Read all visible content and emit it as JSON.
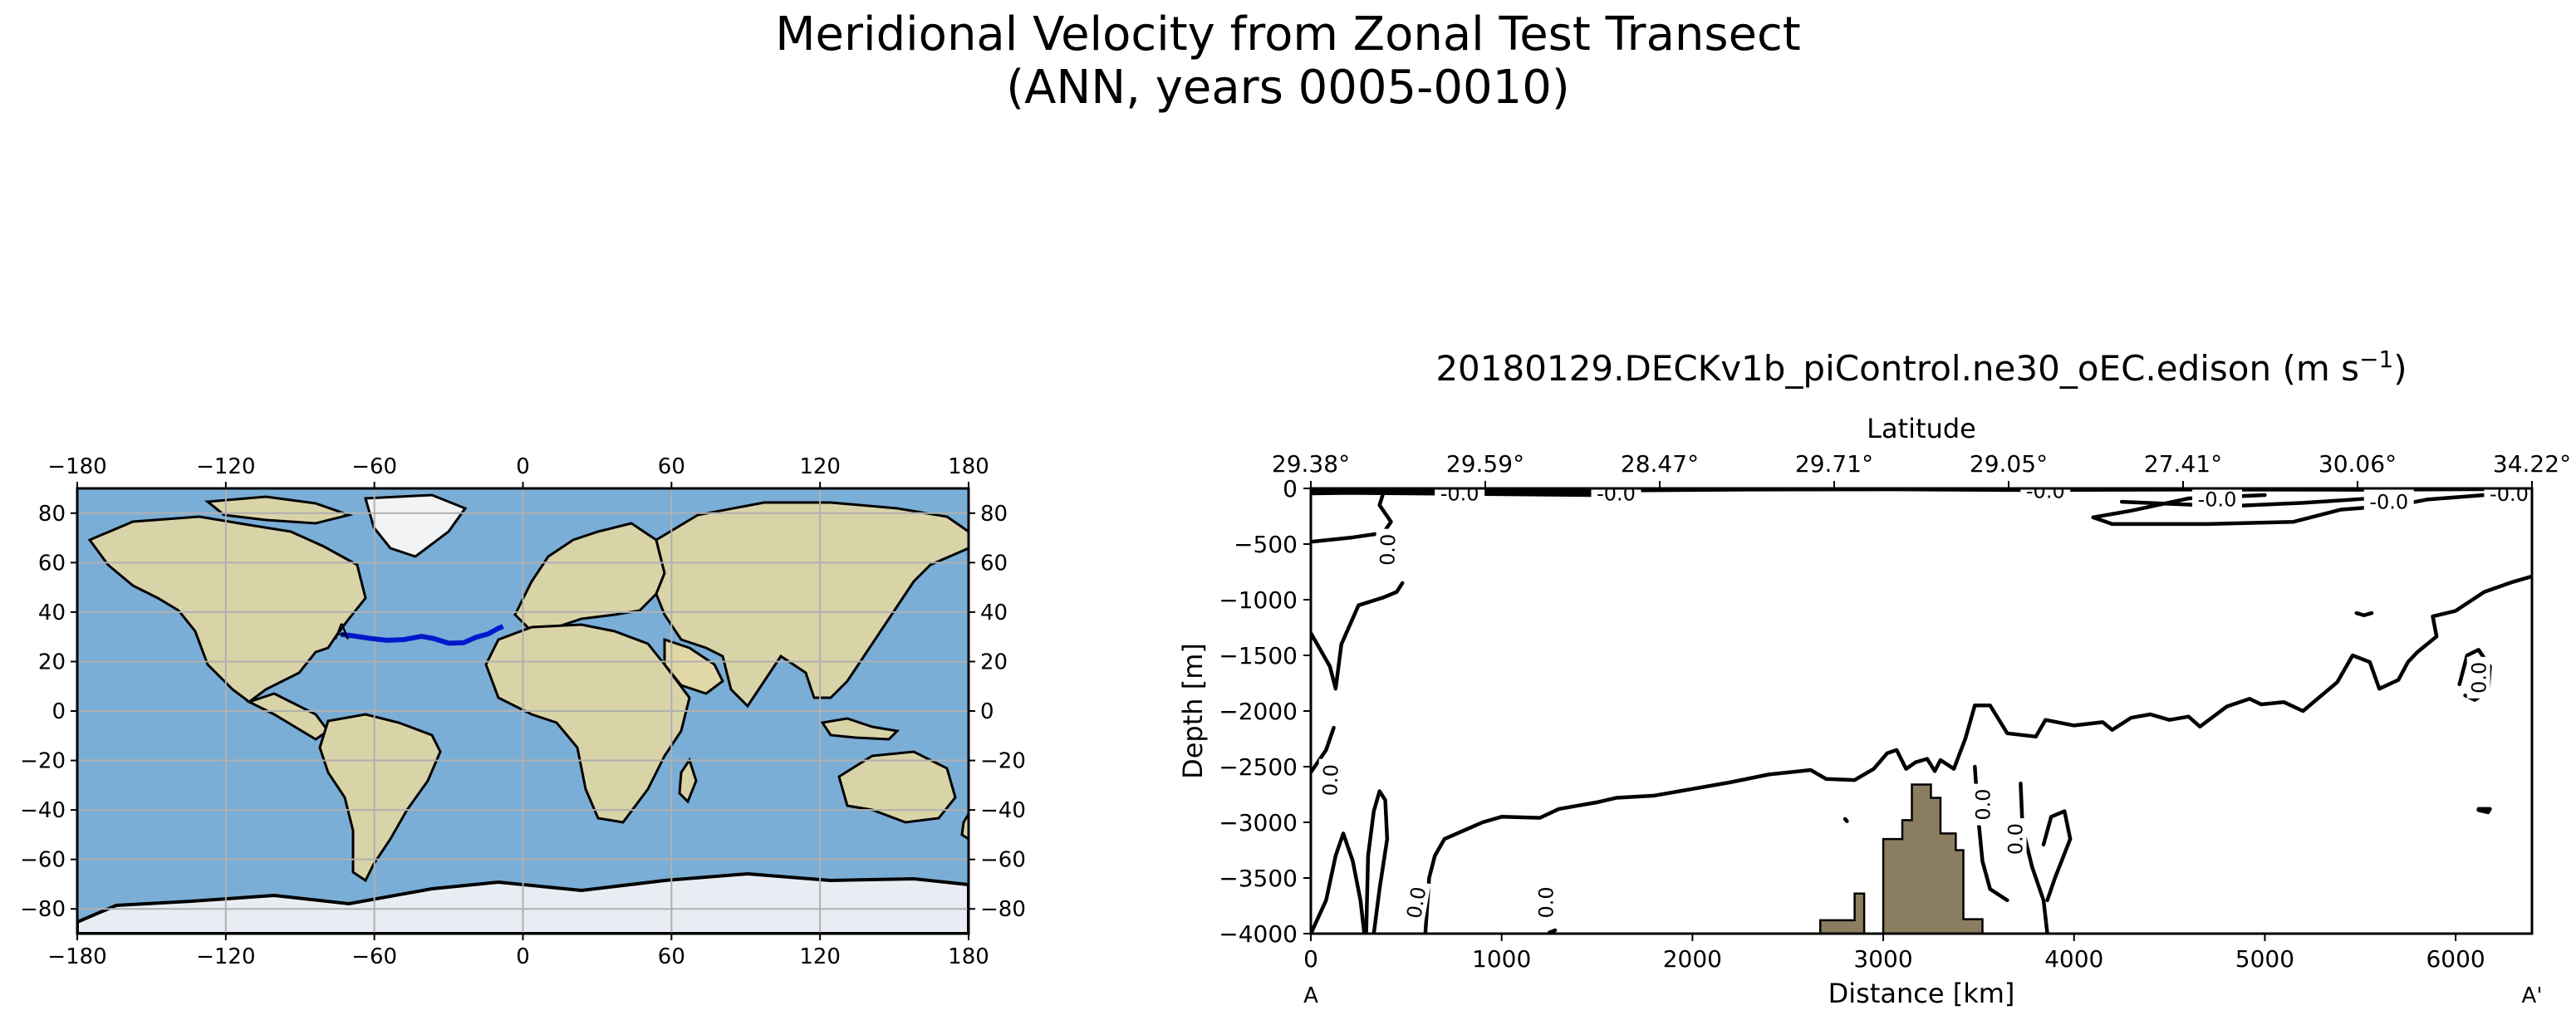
{
  "figure": {
    "title_line1": "Meridional Velocity from Zonal Test Transect",
    "title_line2": "(ANN, years 0005-0010)"
  },
  "map": {
    "lon_ticks": [
      -180,
      -120,
      -60,
      0,
      60,
      120,
      180
    ],
    "lat_ticks": [
      -80,
      -60,
      -40,
      -20,
      0,
      20,
      40,
      60,
      80
    ],
    "lon_range": [
      -180,
      180
    ],
    "lat_range": [
      -90,
      90
    ],
    "transect_label": "A",
    "transect_color": "#0018cc",
    "ocean_color": "#7aaed6",
    "land_color": "#d9d3a8",
    "transect_lonlat": [
      [
        -73.5,
        31.0
      ],
      [
        -68,
        30.3
      ],
      [
        -62,
        29.4
      ],
      [
        -55,
        28.6
      ],
      [
        -48,
        28.9
      ],
      [
        -41,
        30.2
      ],
      [
        -36,
        29.3
      ],
      [
        -30,
        27.4
      ],
      [
        -24,
        27.6
      ],
      [
        -19,
        29.8
      ],
      [
        -14,
        31.2
      ],
      [
        -10,
        33.4
      ],
      [
        -8,
        34.2
      ]
    ]
  },
  "chart_data": {
    "type": "contour",
    "title_main": "20180129.DECKv1b_piControl.ne30_oEC.edison (m s",
    "title_sup": "−1",
    "title_close": ")",
    "xlabel": "Distance [km]",
    "ylabel": "Depth [m]",
    "top_xlabel": "Latitude",
    "top_ticks": [
      "29.38°",
      "29.59°",
      "28.47°",
      "29.71°",
      "29.05°",
      "27.41°",
      "30.06°",
      "34.22°"
    ],
    "x_ticks": [
      0,
      1000,
      2000,
      3000,
      4000,
      5000,
      6000
    ],
    "y_ticks": [
      0,
      -500,
      -1000,
      -1500,
      -2000,
      -2500,
      -3000,
      -3500,
      -4000
    ],
    "xlim": [
      0,
      6400
    ],
    "ylim": [
      -4000,
      0
    ],
    "endpoint_left": "A",
    "endpoint_right": "A'",
    "contour_label": "0.0",
    "contour_label_neg": "-0.0",
    "bathymetry_color": "#8b7d60",
    "bathymetry": [
      [
        2670,
        -4000
      ],
      [
        2670,
        -3880
      ],
      [
        2850,
        -3880
      ],
      [
        2850,
        -3640
      ],
      [
        2900,
        -3640
      ],
      [
        2900,
        -4000
      ],
      [
        3000,
        -4000
      ],
      [
        3000,
        -3150
      ],
      [
        3100,
        -3150
      ],
      [
        3100,
        -2980
      ],
      [
        3150,
        -2980
      ],
      [
        3150,
        -2660
      ],
      [
        3250,
        -2660
      ],
      [
        3250,
        -2780
      ],
      [
        3300,
        -2780
      ],
      [
        3300,
        -3100
      ],
      [
        3380,
        -3100
      ],
      [
        3380,
        -3250
      ],
      [
        3420,
        -3250
      ],
      [
        3420,
        -3870
      ],
      [
        3520,
        -3870
      ],
      [
        3520,
        -4000
      ]
    ],
    "contours": [
      [
        [
          0,
          -5
        ],
        [
          600,
          -12
        ],
        [
          1500,
          -20
        ],
        [
          2300,
          -10
        ],
        [
          3000,
          -8
        ],
        [
          3800,
          -15
        ],
        [
          4600,
          -10
        ],
        [
          5500,
          -12
        ],
        [
          6400,
          -5
        ]
      ],
      [
        [
          0,
          -25
        ],
        [
          900,
          -35
        ],
        [
          1700,
          -45
        ],
        [
          1660,
          -90
        ],
        [
          1480,
          -60
        ],
        [
          900,
          -50
        ],
        [
          200,
          -40
        ],
        [
          0,
          -45
        ]
      ],
      [
        [
          0,
          -480
        ],
        [
          220,
          -440
        ],
        [
          380,
          -400
        ],
        [
          420,
          -300
        ],
        [
          360,
          -150
        ],
        [
          380,
          -40
        ]
      ],
      [
        [
          0,
          -1300
        ],
        [
          100,
          -1600
        ],
        [
          130,
          -1800
        ],
        [
          160,
          -1400
        ],
        [
          250,
          -1050
        ],
        [
          380,
          -980
        ],
        [
          450,
          -930
        ],
        [
          480,
          -850
        ]
      ],
      [
        [
          0,
          -2550
        ],
        [
          80,
          -2350
        ],
        [
          120,
          -2150
        ]
      ],
      [
        [
          5000,
          -60
        ],
        [
          4600,
          -90
        ],
        [
          4300,
          -200
        ],
        [
          4100,
          -260
        ],
        [
          4200,
          -320
        ],
        [
          4700,
          -320
        ],
        [
          5150,
          -300
        ],
        [
          5400,
          -190
        ],
        [
          5700,
          -150
        ],
        [
          5850,
          -100
        ],
        [
          6150,
          -60
        ],
        [
          6400,
          -60
        ]
      ],
      [
        [
          4250,
          -120
        ],
        [
          4800,
          -160
        ],
        [
          5200,
          -130
        ],
        [
          5550,
          -90
        ]
      ],
      [
        [
          0,
          -4000
        ],
        [
          80,
          -3700
        ],
        [
          130,
          -3300
        ],
        [
          170,
          -3100
        ],
        [
          220,
          -3350
        ],
        [
          260,
          -3700
        ],
        [
          280,
          -4000
        ]
      ],
      [
        [
          330,
          -4000
        ],
        [
          360,
          -3600
        ],
        [
          400,
          -3150
        ],
        [
          390,
          -2800
        ],
        [
          360,
          -2720
        ],
        [
          330,
          -2900
        ],
        [
          300,
          -3300
        ],
        [
          290,
          -4000
        ]
      ],
      [
        [
          600,
          -4000
        ],
        [
          620,
          -3500
        ],
        [
          650,
          -3300
        ],
        [
          700,
          -3150
        ],
        [
          900,
          -3000
        ],
        [
          1000,
          -2950
        ],
        [
          1200,
          -2960
        ],
        [
          1300,
          -2880
        ],
        [
          1500,
          -2820
        ],
        [
          1600,
          -2780
        ],
        [
          1800,
          -2760
        ],
        [
          2000,
          -2700
        ],
        [
          2200,
          -2640
        ],
        [
          2400,
          -2570
        ],
        [
          2620,
          -2530
        ],
        [
          2700,
          -2610
        ],
        [
          2850,
          -2620
        ],
        [
          2950,
          -2520
        ],
        [
          3020,
          -2380
        ],
        [
          3070,
          -2350
        ],
        [
          3120,
          -2520
        ],
        [
          3170,
          -2460
        ],
        [
          3230,
          -2430
        ],
        [
          3270,
          -2540
        ],
        [
          3300,
          -2440
        ],
        [
          3370,
          -2520
        ],
        [
          3430,
          -2250
        ],
        [
          3480,
          -1950
        ],
        [
          3560,
          -1950
        ],
        [
          3650,
          -2200
        ],
        [
          3800,
          -2230
        ],
        [
          3850,
          -2080
        ],
        [
          4000,
          -2130
        ],
        [
          4150,
          -2100
        ],
        [
          4200,
          -2170
        ],
        [
          4300,
          -2060
        ],
        [
          4400,
          -2030
        ],
        [
          4500,
          -2080
        ],
        [
          4600,
          -2050
        ],
        [
          4660,
          -2140
        ],
        [
          4800,
          -1960
        ],
        [
          4920,
          -1890
        ],
        [
          4980,
          -1940
        ],
        [
          5100,
          -1920
        ],
        [
          5200,
          -2000
        ],
        [
          5380,
          -1740
        ],
        [
          5460,
          -1500
        ],
        [
          5550,
          -1560
        ],
        [
          5600,
          -1800
        ],
        [
          5700,
          -1720
        ],
        [
          5750,
          -1560
        ],
        [
          5800,
          -1470
        ],
        [
          5900,
          -1330
        ],
        [
          5880,
          -1150
        ],
        [
          6000,
          -1100
        ],
        [
          6150,
          -930
        ],
        [
          6300,
          -840
        ],
        [
          6400,
          -790
        ]
      ],
      [
        [
          3480,
          -2500
        ],
        [
          3500,
          -3000
        ],
        [
          3520,
          -3350
        ],
        [
          3560,
          -3600
        ],
        [
          3650,
          -3700
        ]
      ],
      [
        [
          3720,
          -2650
        ],
        [
          3730,
          -3050
        ],
        [
          3780,
          -3400
        ],
        [
          3840,
          -3700
        ],
        [
          3860,
          -4000
        ]
      ],
      [
        [
          3860,
          -3700
        ],
        [
          3900,
          -3500
        ],
        [
          3980,
          -3150
        ],
        [
          3950,
          -2900
        ],
        [
          3880,
          -2950
        ],
        [
          3840,
          -3200
        ]
      ],
      [
        [
          6020,
          -1760
        ],
        [
          6060,
          -1500
        ],
        [
          6120,
          -1450
        ],
        [
          6180,
          -1600
        ],
        [
          6170,
          -1820
        ],
        [
          6100,
          -1900
        ],
        [
          6050,
          -1860
        ]
      ],
      [
        [
          5480,
          -1120
        ],
        [
          5520,
          -1140
        ],
        [
          5560,
          -1120
        ]
      ],
      [
        [
          6120,
          -2890
        ],
        [
          6170,
          -2910
        ],
        [
          6180,
          -2880
        ],
        [
          6120,
          -2880
        ]
      ],
      [
        [
          1250,
          -3990
        ],
        [
          1280,
          -3970
        ]
      ],
      [
        [
          2800,
          -2970
        ],
        [
          2810,
          -2990
        ]
      ]
    ],
    "label_positions": [
      [
        400,
        -550,
        -88
      ],
      [
        100,
        -2620,
        -88
      ],
      [
        550,
        -3720,
        -80
      ],
      [
        1230,
        -3720,
        -90
      ],
      [
        3520,
        -2840,
        -90
      ],
      [
        3690,
        -3150,
        -90
      ],
      [
        6120,
        -1700,
        -90
      ],
      [
        780,
        -40,
        0
      ],
      [
        1600,
        -40,
        0
      ],
      [
        3850,
        -20,
        0
      ],
      [
        4750,
        -95,
        0
      ],
      [
        5650,
        -115,
        0
      ],
      [
        6280,
        -45,
        0
      ]
    ]
  }
}
